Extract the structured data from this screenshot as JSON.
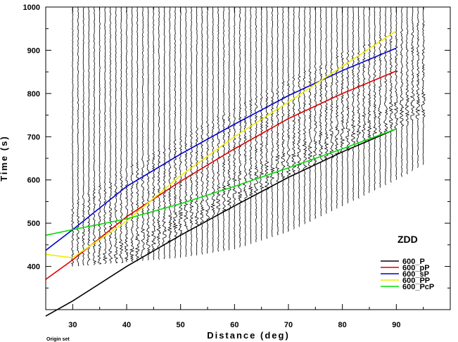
{
  "chart_data": {
    "type": "line",
    "title": "",
    "xlabel": "Distance (deg)",
    "ylabel": "Time (s)",
    "xlim": [
      25,
      100
    ],
    "ylim": [
      300,
      1000
    ],
    "x_ticks": [
      30,
      40,
      50,
      60,
      70,
      80,
      90
    ],
    "y_ticks": [
      400,
      500,
      600,
      700,
      800,
      900,
      1000
    ],
    "station_label": "ZDD",
    "footnote": "Origin set",
    "legend_position": "bottom-right",
    "series": [
      {
        "name": "600_P",
        "color": "#000000",
        "x": [
          25,
          30,
          40,
          50,
          60,
          70,
          80,
          90
        ],
        "y": [
          285,
          320,
          400,
          472,
          540,
          606,
          665,
          718
        ]
      },
      {
        "name": "600_pP",
        "color": "#dd0000",
        "x": [
          25,
          30,
          40,
          50,
          60,
          70,
          80,
          90
        ],
        "y": [
          370,
          415,
          515,
          597,
          672,
          742,
          800,
          852
        ]
      },
      {
        "name": "600_sP",
        "color": "#0000cc",
        "x": [
          25,
          30,
          40,
          50,
          60,
          70,
          80,
          90
        ],
        "y": [
          437,
          485,
          585,
          660,
          729,
          795,
          853,
          905
        ]
      },
      {
        "name": "600_PP",
        "color": "#eeee00",
        "x": [
          25,
          30,
          40,
          50,
          60,
          70,
          80,
          90
        ],
        "y": [
          428,
          420,
          505,
          610,
          700,
          780,
          863,
          945
        ]
      },
      {
        "name": "600_PcP",
        "color": "#00dd00",
        "x": [
          25,
          30,
          40,
          50,
          60,
          70,
          80,
          90
        ],
        "y": [
          472,
          485,
          510,
          545,
          585,
          628,
          672,
          718
        ]
      }
    ],
    "traces": {
      "distance_start": 30,
      "distance_end": 95,
      "spacing_deg": 1,
      "time_start": 1000,
      "onset_phase": "600_P",
      "end_times": [
        {
          "x": 30,
          "y": 400
        },
        {
          "x": 40,
          "y": 410
        },
        {
          "x": 50,
          "y": 420
        },
        {
          "x": 60,
          "y": 440
        },
        {
          "x": 70,
          "y": 480
        },
        {
          "x": 80,
          "y": 540
        },
        {
          "x": 90,
          "y": 600
        },
        {
          "x": 95,
          "y": 635
        }
      ]
    }
  }
}
